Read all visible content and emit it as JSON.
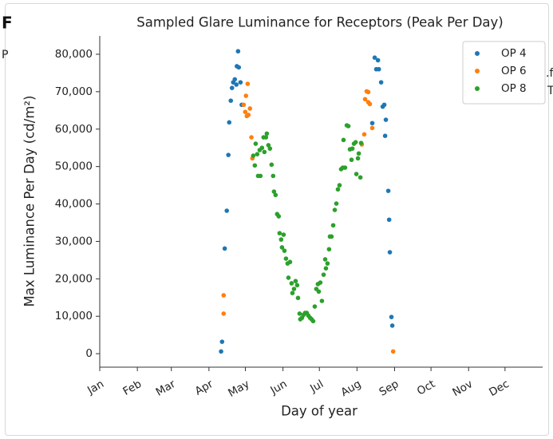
{
  "background_text": [
    "F",
    "P",
    ".f",
    "T"
  ],
  "chart_data": {
    "type": "scatter",
    "title": "Sampled Glare Luminance for Receptors (Peak Per Day)",
    "x_label": "Day of year",
    "y_label": "Max Luminance Per Day (cd/m²)",
    "xlim": [
      1,
      366
    ],
    "xticks": [
      {
        "value": 1,
        "label": "Jan"
      },
      {
        "value": 32,
        "label": "Feb"
      },
      {
        "value": 60,
        "label": "Mar"
      },
      {
        "value": 91,
        "label": "Apr"
      },
      {
        "value": 121,
        "label": "May"
      },
      {
        "value": 152,
        "label": "Jun"
      },
      {
        "value": 182,
        "label": "Jul"
      },
      {
        "value": 213,
        "label": "Aug"
      },
      {
        "value": 244,
        "label": "Sep"
      },
      {
        "value": 274,
        "label": "Oct"
      },
      {
        "value": 305,
        "label": "Nov"
      },
      {
        "value": 335,
        "label": "Dec"
      }
    ],
    "ylim": [
      -3600,
      84900
    ],
    "yticks": [
      0,
      {
        "value": 10000,
        "label": "10,000"
      },
      {
        "value": 20000,
        "label": "20,000"
      },
      {
        "value": 30000,
        "label": "30,000"
      },
      {
        "value": 40000,
        "label": "40,000"
      },
      {
        "value": 50000,
        "label": "50,000"
      },
      {
        "value": 60000,
        "label": "60,000"
      },
      {
        "value": 70000,
        "label": "70,000"
      },
      {
        "value": 80000,
        "label": "80,000"
      }
    ],
    "grid": false,
    "legend": "upper right",
    "series": [
      {
        "name": "OP 4",
        "color": "#1f77b4",
        "x": [
          101,
          101.8,
          104,
          105.7,
          107,
          107.7,
          109,
          110,
          111,
          112.3,
          113.6,
          114,
          115.6,
          115,
          117,
          118,
          225.6,
          227.6,
          228.9,
          230.3,
          231,
          232.9,
          234.2,
          235.5,
          236.8,
          236.2,
          238.8,
          239.5,
          240.1,
          241.4,
          242.1
        ],
        "values": [
          600,
          3200,
          28100,
          38200,
          53100,
          61800,
          67600,
          71000,
          72500,
          73300,
          71900,
          76800,
          76500,
          80800,
          72500,
          66500,
          61600,
          79100,
          76000,
          78400,
          76000,
          72500,
          66000,
          66500,
          62500,
          58200,
          43500,
          35800,
          27100,
          9800,
          7500
        ]
      },
      {
        "name": "OP 6",
        "color": "#ff7f0e",
        "x": [
          103.1,
          103.1,
          122.9,
          121.5,
          119.6,
          120.9,
          122.2,
          123.5,
          124.8,
          126,
          126.8,
          217,
          219,
          219.7,
          221,
          222.3,
          222.3,
          223.6,
          225.6,
          242.8
        ],
        "values": [
          15600,
          10700,
          72100,
          68900,
          66500,
          64600,
          63500,
          63800,
          65500,
          57800,
          52200,
          55900,
          58600,
          68000,
          70100,
          69900,
          67200,
          66700,
          60300,
          600
        ]
      },
      {
        "name": "OP 8",
        "color": "#2ca02c",
        "x": [
          127.5,
          128.8,
          129.5,
          130.8,
          131.5,
          132.8,
          133.4,
          134.7,
          136,
          136.7,
          138,
          138.7,
          140,
          141.3,
          142.6,
          143.9,
          144.6,
          145.9,
          147.2,
          148.5,
          149.2,
          150.5,
          151.2,
          152.5,
          153.2,
          154.5,
          155.8,
          156.5,
          157.8,
          159.1,
          159.8,
          161.1,
          162.4,
          163.7,
          164.4,
          165.7,
          166.3,
          167.7,
          169,
          170.3,
          171.6,
          172.9,
          174.3,
          175.6,
          176.9,
          178.2,
          179.5,
          180.8,
          181.5,
          182.8,
          184.1,
          185.5,
          186.8,
          187.4,
          188.7,
          190,
          190.7,
          192,
          193.4,
          194.7,
          196,
          197.3,
          198.6,
          199.9,
          201.3,
          201.9,
          203.2,
          204.6,
          205.9,
          207.2,
          208.5,
          209.2,
          210.5,
          211.9,
          212.5,
          213.8,
          214.5,
          215.8,
          216.4
        ],
        "values": [
          52900,
          50300,
          56100,
          53300,
          47500,
          54400,
          47500,
          55000,
          57800,
          53900,
          57800,
          58800,
          55700,
          54800,
          50500,
          47500,
          43300,
          42400,
          37300,
          36700,
          32200,
          30500,
          28400,
          31800,
          27500,
          25400,
          24100,
          20300,
          24500,
          18800,
          16200,
          17300,
          19400,
          18300,
          14900,
          10700,
          9200,
          9600,
          10400,
          10900,
          10900,
          10200,
          9600,
          9200,
          8700,
          12600,
          17300,
          18600,
          16600,
          19000,
          14100,
          21100,
          25200,
          22800,
          24100,
          27900,
          31300,
          31300,
          34300,
          38400,
          40100,
          43900,
          45000,
          49300,
          49700,
          57100,
          49700,
          61000,
          60800,
          54600,
          51800,
          54800,
          56100,
          56500,
          48000,
          52200,
          53500,
          47100,
          56300
        ]
      }
    ]
  }
}
